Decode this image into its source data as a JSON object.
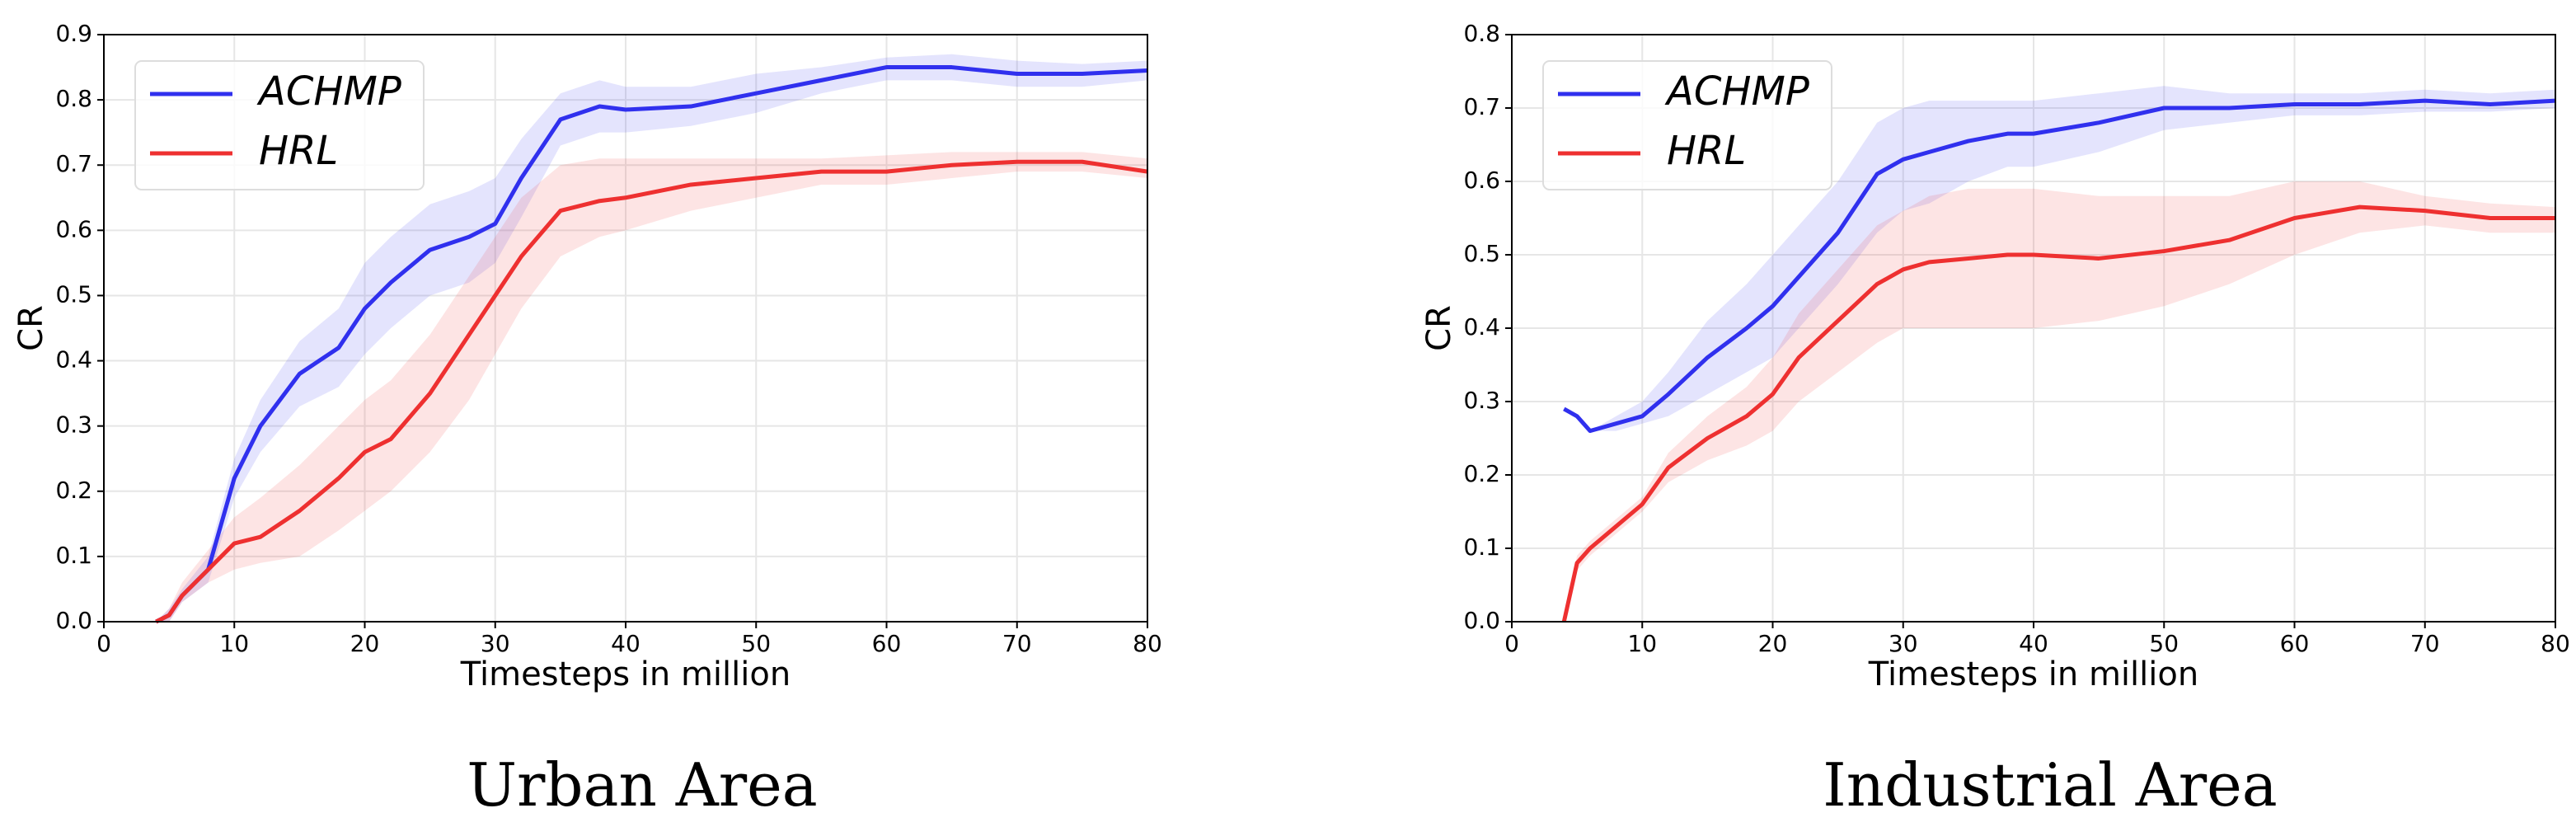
{
  "chart_data": [
    {
      "type": "line",
      "title": "Urban Area",
      "xlabel": "Timesteps in million",
      "ylabel": "CR",
      "x": [
        4,
        5,
        6,
        8,
        10,
        12,
        15,
        18,
        20,
        22,
        25,
        28,
        30,
        32,
        35,
        38,
        40,
        45,
        50,
        55,
        60,
        65,
        70,
        75,
        80
      ],
      "xlim": [
        0,
        80
      ],
      "xticks": [
        0,
        10,
        20,
        30,
        40,
        50,
        60,
        70,
        80
      ],
      "ylim": [
        0,
        0.9
      ],
      "yticks": [
        0.0,
        0.1,
        0.2,
        0.3,
        0.4,
        0.5,
        0.6,
        0.7,
        0.8,
        0.9
      ],
      "grid": true,
      "legend": "upper left",
      "series": [
        {
          "name": "ACHMP",
          "color": "#3030ee",
          "values": [
            0,
            0.01,
            0.04,
            0.08,
            0.22,
            0.3,
            0.38,
            0.42,
            0.48,
            0.52,
            0.57,
            0.59,
            0.61,
            0.68,
            0.77,
            0.79,
            0.785,
            0.79,
            0.81,
            0.83,
            0.85,
            0.85,
            0.84,
            0.84,
            0.845
          ],
          "lower": [
            0,
            0.0,
            0.03,
            0.06,
            0.19,
            0.26,
            0.33,
            0.36,
            0.41,
            0.45,
            0.5,
            0.52,
            0.55,
            0.62,
            0.73,
            0.75,
            0.75,
            0.76,
            0.78,
            0.81,
            0.83,
            0.83,
            0.82,
            0.82,
            0.83
          ],
          "upper": [
            0,
            0.02,
            0.05,
            0.1,
            0.25,
            0.34,
            0.43,
            0.48,
            0.55,
            0.59,
            0.64,
            0.66,
            0.68,
            0.74,
            0.81,
            0.83,
            0.82,
            0.82,
            0.84,
            0.85,
            0.865,
            0.87,
            0.86,
            0.855,
            0.86
          ]
        },
        {
          "name": "HRL",
          "color": "#ee3030",
          "values": [
            0,
            0.01,
            0.04,
            0.08,
            0.12,
            0.13,
            0.17,
            0.22,
            0.26,
            0.28,
            0.35,
            0.44,
            0.5,
            0.56,
            0.63,
            0.645,
            0.65,
            0.67,
            0.68,
            0.69,
            0.69,
            0.7,
            0.705,
            0.705,
            0.69
          ],
          "lower": [
            0,
            0.0,
            0.03,
            0.06,
            0.08,
            0.09,
            0.1,
            0.14,
            0.17,
            0.2,
            0.26,
            0.34,
            0.41,
            0.48,
            0.56,
            0.59,
            0.6,
            0.63,
            0.65,
            0.67,
            0.67,
            0.68,
            0.69,
            0.69,
            0.68
          ],
          "upper": [
            0,
            0.02,
            0.06,
            0.11,
            0.16,
            0.19,
            0.24,
            0.3,
            0.34,
            0.37,
            0.44,
            0.53,
            0.59,
            0.65,
            0.7,
            0.71,
            0.71,
            0.71,
            0.71,
            0.71,
            0.715,
            0.72,
            0.72,
            0.72,
            0.71
          ]
        }
      ]
    },
    {
      "type": "line",
      "title": "Industrial Area",
      "xlabel": "Timesteps in million",
      "ylabel": "CR",
      "x": [
        4,
        5,
        6,
        8,
        10,
        12,
        15,
        18,
        20,
        22,
        25,
        28,
        30,
        32,
        35,
        38,
        40,
        45,
        50,
        55,
        60,
        65,
        70,
        75,
        80
      ],
      "xlim": [
        0,
        80
      ],
      "xticks": [
        0,
        10,
        20,
        30,
        40,
        50,
        60,
        70,
        80
      ],
      "ylim": [
        0,
        0.8
      ],
      "yticks": [
        0.0,
        0.1,
        0.2,
        0.3,
        0.4,
        0.5,
        0.6,
        0.7,
        0.8
      ],
      "grid": true,
      "legend": "upper left",
      "series": [
        {
          "name": "ACHMP",
          "color": "#3030ee",
          "values": [
            0.29,
            0.28,
            0.26,
            0.27,
            0.28,
            0.31,
            0.36,
            0.4,
            0.43,
            0.47,
            0.53,
            0.61,
            0.63,
            0.64,
            0.655,
            0.665,
            0.665,
            0.68,
            0.7,
            0.7,
            0.705,
            0.705,
            0.71,
            0.705,
            0.71
          ],
          "lower": [
            0.29,
            0.28,
            0.26,
            0.26,
            0.27,
            0.28,
            0.31,
            0.34,
            0.36,
            0.4,
            0.46,
            0.53,
            0.56,
            0.57,
            0.6,
            0.62,
            0.62,
            0.64,
            0.67,
            0.68,
            0.69,
            0.69,
            0.695,
            0.695,
            0.7
          ],
          "upper": [
            0.29,
            0.28,
            0.26,
            0.28,
            0.3,
            0.34,
            0.41,
            0.46,
            0.5,
            0.54,
            0.6,
            0.68,
            0.7,
            0.71,
            0.71,
            0.71,
            0.71,
            0.72,
            0.73,
            0.72,
            0.72,
            0.72,
            0.725,
            0.72,
            0.725
          ]
        },
        {
          "name": "HRL",
          "color": "#ee3030",
          "values": [
            0,
            0.08,
            0.1,
            0.13,
            0.16,
            0.21,
            0.25,
            0.28,
            0.31,
            0.36,
            0.41,
            0.46,
            0.48,
            0.49,
            0.495,
            0.5,
            0.5,
            0.495,
            0.505,
            0.52,
            0.55,
            0.565,
            0.56,
            0.55,
            0.55
          ],
          "lower": [
            0,
            0.07,
            0.09,
            0.12,
            0.15,
            0.19,
            0.22,
            0.24,
            0.26,
            0.3,
            0.34,
            0.38,
            0.4,
            0.4,
            0.4,
            0.4,
            0.4,
            0.41,
            0.43,
            0.46,
            0.5,
            0.53,
            0.54,
            0.53,
            0.53
          ],
          "upper": [
            0,
            0.09,
            0.11,
            0.14,
            0.17,
            0.23,
            0.28,
            0.32,
            0.36,
            0.42,
            0.48,
            0.54,
            0.56,
            0.58,
            0.59,
            0.59,
            0.59,
            0.58,
            0.58,
            0.58,
            0.6,
            0.6,
            0.58,
            0.57,
            0.565
          ]
        }
      ]
    }
  ]
}
